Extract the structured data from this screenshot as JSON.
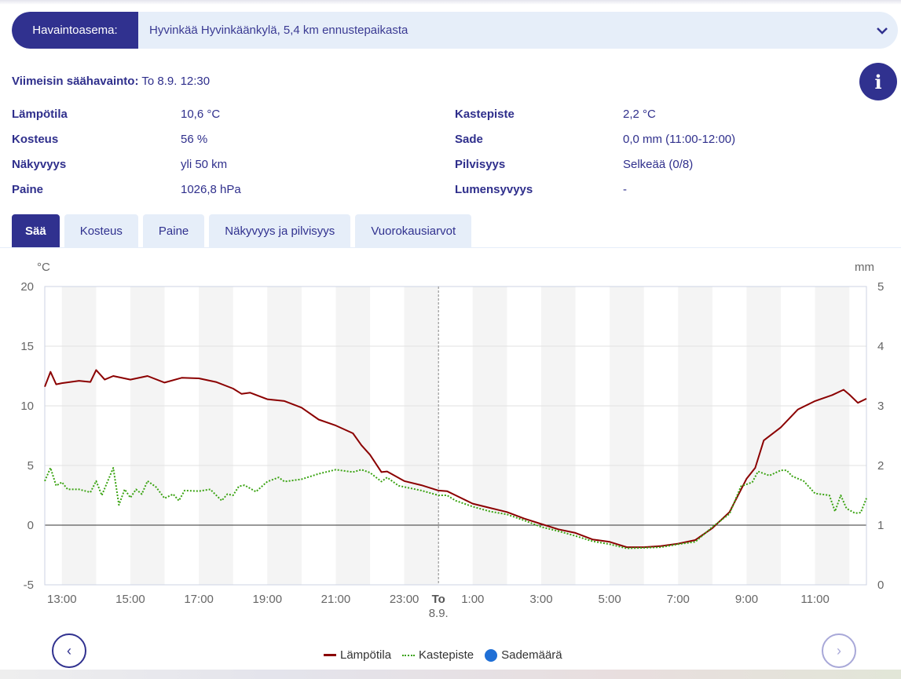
{
  "station": {
    "label": "Havaintoasema:",
    "value": "Hyvinkää Hyvinkäänkylä, 5,4 km ennustepaikasta"
  },
  "latest": {
    "label": "Viimeisin säähavainto:",
    "value": "To 8.9. 12:30"
  },
  "info_label": "i",
  "observations": [
    {
      "label": "Lämpötila",
      "value": "10,6 °C"
    },
    {
      "label": "Kosteus",
      "value": "56 %"
    },
    {
      "label": "Näkyvyys",
      "value": "yli 50 km"
    },
    {
      "label": "Paine",
      "value": "1026,8 hPa"
    },
    {
      "label": "Kastepiste",
      "value": "2,2 °C"
    },
    {
      "label": "Sade",
      "value": "0,0 mm (11:00-12:00)"
    },
    {
      "label": "Pilvisyys",
      "value": "Selkeää (0/8)"
    },
    {
      "label": "Lumensyvyys",
      "value": "-"
    }
  ],
  "tabs": [
    {
      "label": "Sää",
      "active": true
    },
    {
      "label": "Kosteus"
    },
    {
      "label": "Paine"
    },
    {
      "label": "Näkyvyys ja pilvisyys"
    },
    {
      "label": "Vuorokausiarvot"
    }
  ],
  "chart_data": {
    "type": "line",
    "ylabel_left": "°C",
    "ylabel_right": "mm",
    "ylim_left": [
      -5,
      20
    ],
    "ylim_right": [
      0,
      5
    ],
    "yticks_left": [
      "20",
      "15",
      "10",
      "5",
      "0",
      "-5"
    ],
    "yticks_right": [
      "5",
      "4",
      "3",
      "2",
      "1",
      "0"
    ],
    "xlim": [
      "12:30",
      "12:30 (8.9.)"
    ],
    "xticks": [
      {
        "time": "13:00",
        "label": "13:00"
      },
      {
        "time": "15:00",
        "label": "15:00"
      },
      {
        "time": "17:00",
        "label": "17:00"
      },
      {
        "time": "19:00",
        "label": "19:00"
      },
      {
        "time": "21:00",
        "label": "21:00"
      },
      {
        "time": "23:00",
        "label": "23:00"
      },
      {
        "time": "0:00",
        "label": "To",
        "sublabel": "8.9.",
        "bold": true
      },
      {
        "time": "1:00",
        "label": "1:00"
      },
      {
        "time": "3:00",
        "label": "3:00"
      },
      {
        "time": "5:00",
        "label": "5:00"
      },
      {
        "time": "7:00",
        "label": "7:00"
      },
      {
        "time": "9:00",
        "label": "9:00"
      },
      {
        "time": "11:00",
        "label": "11:00"
      }
    ],
    "grid": true,
    "legend_position": "bottom",
    "series": [
      {
        "name": "Lämpötila",
        "color": "#8b0000",
        "style": "solid",
        "axis": "left",
        "x": [
          "12:30",
          "12:40",
          "12:50",
          "13:00",
          "13:30",
          "13:50",
          "14:00",
          "14:15",
          "14:30",
          "15:00",
          "15:30",
          "16:00",
          "16:30",
          "17:00",
          "17:30",
          "18:00",
          "18:15",
          "18:30",
          "19:00",
          "19:30",
          "20:00",
          "20:30",
          "21:00",
          "21:30",
          "21:45",
          "22:00",
          "22:20",
          "22:30",
          "23:00",
          "23:30",
          "0:00",
          "0:15",
          "0:30",
          "1:00",
          "1:30",
          "2:00",
          "2:30",
          "3:00",
          "3:30",
          "4:00",
          "4:30",
          "5:00",
          "5:30",
          "6:00",
          "6:30",
          "7:00",
          "7:30",
          "8:00",
          "8:30",
          "9:00",
          "9:15",
          "9:30",
          "10:00",
          "10:30",
          "11:00",
          "11:30",
          "11:50",
          "12:00",
          "12:15",
          "12:30"
        ],
        "y": [
          11.6,
          12.85,
          11.8,
          11.9,
          12.1,
          12.0,
          13.0,
          12.2,
          12.5,
          12.2,
          12.5,
          11.95,
          12.35,
          12.3,
          12.0,
          11.45,
          11.0,
          11.1,
          10.55,
          10.4,
          9.85,
          8.85,
          8.35,
          7.7,
          6.7,
          5.9,
          4.45,
          4.5,
          3.7,
          3.35,
          2.9,
          2.85,
          2.5,
          1.8,
          1.45,
          1.1,
          0.55,
          0.1,
          -0.35,
          -0.65,
          -1.2,
          -1.4,
          -1.85,
          -1.85,
          -1.75,
          -1.55,
          -1.25,
          -0.25,
          1.1,
          3.9,
          4.8,
          7.1,
          8.2,
          9.7,
          10.4,
          10.9,
          11.35,
          10.95,
          10.25,
          10.6
        ]
      },
      {
        "name": "Kastepiste",
        "color": "#3aa312",
        "style": "dotted",
        "axis": "left",
        "x": [
          "12:30",
          "12:40",
          "12:50",
          "13:00",
          "13:10",
          "13:30",
          "13:50",
          "14:00",
          "14:10",
          "14:30",
          "14:40",
          "14:50",
          "15:00",
          "15:10",
          "15:20",
          "15:30",
          "15:45",
          "16:00",
          "16:15",
          "16:25",
          "16:35",
          "17:00",
          "17:20",
          "17:40",
          "17:50",
          "18:00",
          "18:10",
          "18:20",
          "18:40",
          "19:00",
          "19:20",
          "19:30",
          "20:00",
          "20:30",
          "21:00",
          "21:30",
          "21:45",
          "22:00",
          "22:20",
          "22:30",
          "22:50",
          "23:30",
          "0:00",
          "0:15",
          "0:30",
          "1:00",
          "1:30",
          "2:00",
          "2:30",
          "3:00",
          "3:30",
          "4:00",
          "4:30",
          "5:00",
          "5:30",
          "6:00",
          "6:30",
          "7:00",
          "7:30",
          "8:00",
          "8:30",
          "8:50",
          "9:10",
          "9:20",
          "9:40",
          "10:00",
          "10:10",
          "10:20",
          "10:40",
          "11:00",
          "11:25",
          "11:35",
          "11:45",
          "11:55",
          "12:10",
          "12:20",
          "12:30"
        ],
        "y": [
          3.7,
          4.8,
          3.3,
          3.6,
          3.0,
          3.0,
          2.75,
          3.7,
          2.5,
          4.8,
          1.7,
          3.0,
          2.3,
          3.0,
          2.6,
          3.7,
          3.2,
          2.25,
          2.6,
          2.05,
          2.9,
          2.85,
          3.0,
          2.05,
          2.6,
          2.5,
          3.25,
          3.35,
          2.8,
          3.65,
          4.0,
          3.65,
          3.85,
          4.3,
          4.65,
          4.45,
          4.65,
          4.4,
          3.65,
          4.0,
          3.3,
          2.9,
          2.5,
          2.5,
          2.05,
          1.55,
          1.15,
          0.9,
          0.4,
          -0.15,
          -0.5,
          -0.9,
          -1.35,
          -1.6,
          -1.95,
          -1.9,
          -1.85,
          -1.6,
          -1.4,
          -0.15,
          0.95,
          3.25,
          3.6,
          4.5,
          4.15,
          4.6,
          4.6,
          4.1,
          3.7,
          2.65,
          2.5,
          1.15,
          2.5,
          1.4,
          1.0,
          1.05,
          2.25
        ]
      },
      {
        "name": "Sademäärä",
        "color": "#1f6fd6",
        "style": "bar",
        "axis": "right",
        "x": [],
        "y": []
      }
    ]
  },
  "nav": {
    "prev": "‹",
    "next": "›"
  }
}
